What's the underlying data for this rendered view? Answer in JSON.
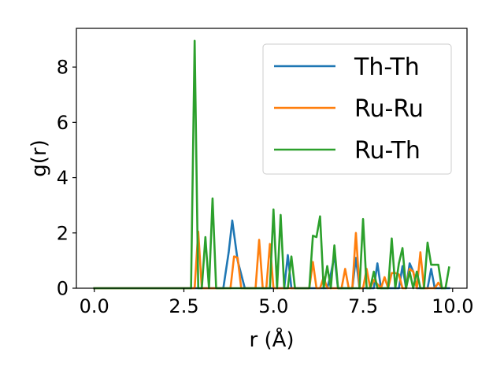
{
  "chart_data": {
    "type": "line",
    "xlabel": "r (Å)",
    "ylabel": "g(r)",
    "xlim": [
      -0.5,
      10.4
    ],
    "ylim": [
      0,
      9.4
    ],
    "xticks": [
      0.0,
      2.5,
      5.0,
      7.5,
      10.0
    ],
    "xtick_labels": [
      "0.0",
      "2.5",
      "5.0",
      "7.5",
      "10.0"
    ],
    "yticks": [
      0,
      2,
      4,
      6,
      8
    ],
    "ytick_labels": [
      "0",
      "2",
      "4",
      "6",
      "8"
    ],
    "legend_position": "top-right",
    "grid": false,
    "series": [
      {
        "name": "Th-Th",
        "color": "#1f77b4",
        "x": [
          0.0,
          2.8,
          3.6,
          3.75,
          3.85,
          4.0,
          4.2,
          5.3,
          5.4,
          5.5,
          6.5,
          6.6,
          6.7,
          6.8,
          7.2,
          7.3,
          7.4,
          7.8,
          7.9,
          8.0,
          8.5,
          8.6,
          8.7,
          8.8,
          8.9,
          9.0,
          9.3,
          9.4,
          9.5,
          9.9
        ],
        "y": [
          0.0,
          0.0,
          0.0,
          1.3,
          2.45,
          1.0,
          0.0,
          0.0,
          1.2,
          0.0,
          0.0,
          0.5,
          1.2,
          0.0,
          0.0,
          1.1,
          0.0,
          0.0,
          0.9,
          0.0,
          0.0,
          0.8,
          0.0,
          0.9,
          0.6,
          0.0,
          0.0,
          0.7,
          0.0,
          0.0
        ]
      },
      {
        "name": "Ru-Ru",
        "color": "#ff7f0e",
        "x": [
          0.0,
          2.8,
          2.9,
          3.0,
          3.1,
          3.8,
          3.9,
          4.0,
          4.1,
          4.5,
          4.6,
          4.7,
          4.8,
          4.9,
          5.0,
          6.0,
          6.1,
          6.2,
          6.3,
          6.4,
          6.5,
          6.9,
          7.0,
          7.1,
          7.2,
          7.3,
          7.4,
          7.5,
          7.6,
          7.7,
          7.8,
          8.0,
          8.1,
          8.2,
          8.3,
          8.4,
          8.5,
          8.6,
          8.7,
          8.8,
          8.9,
          9.0,
          9.1,
          9.2,
          9.5,
          9.6,
          9.7
        ],
        "y": [
          0.0,
          0.0,
          2.05,
          0.0,
          0.0,
          0.0,
          1.15,
          1.1,
          0.0,
          0.0,
          1.75,
          0.0,
          0.0,
          1.6,
          0.0,
          0.0,
          0.95,
          0.0,
          0.0,
          0.4,
          0.0,
          0.0,
          0.7,
          0.0,
          0.0,
          2.0,
          0.0,
          0.0,
          0.7,
          0.0,
          0.3,
          0.0,
          0.4,
          0.0,
          0.55,
          0.55,
          0.5,
          0.0,
          0.0,
          0.7,
          0.6,
          0.0,
          1.3,
          0.0,
          0.0,
          0.2,
          0.0
        ]
      },
      {
        "name": "Ru-Th",
        "color": "#2ca02c",
        "x": [
          0.0,
          2.7,
          2.8,
          2.9,
          3.0,
          3.1,
          3.2,
          3.3,
          3.4,
          4.9,
          5.0,
          5.1,
          5.2,
          5.3,
          5.4,
          5.5,
          5.6,
          5.7,
          6.0,
          6.1,
          6.2,
          6.3,
          6.4,
          6.5,
          6.6,
          6.7,
          6.8,
          6.9,
          7.4,
          7.5,
          7.6,
          7.7,
          7.8,
          7.9,
          8.0,
          8.1,
          8.2,
          8.3,
          8.4,
          8.5,
          8.6,
          8.7,
          8.8,
          8.9,
          9.0,
          9.1,
          9.2,
          9.3,
          9.4,
          9.5,
          9.6,
          9.7,
          9.8,
          9.9
        ],
        "y": [
          0.0,
          0.0,
          8.95,
          0.0,
          0.0,
          1.85,
          0.0,
          3.25,
          0.0,
          0.0,
          2.85,
          0.0,
          2.65,
          0.0,
          0.0,
          1.15,
          0.0,
          0.0,
          0.0,
          1.9,
          1.85,
          2.6,
          0.0,
          0.8,
          0.0,
          1.55,
          0.0,
          0.0,
          0.0,
          2.5,
          0.0,
          0.0,
          0.6,
          0.0,
          0.0,
          0.0,
          0.0,
          1.8,
          0.0,
          0.9,
          1.45,
          0.0,
          0.6,
          0.0,
          0.6,
          0.0,
          0.0,
          1.65,
          0.85,
          0.85,
          0.85,
          0.0,
          0.0,
          0.75
        ]
      }
    ]
  }
}
